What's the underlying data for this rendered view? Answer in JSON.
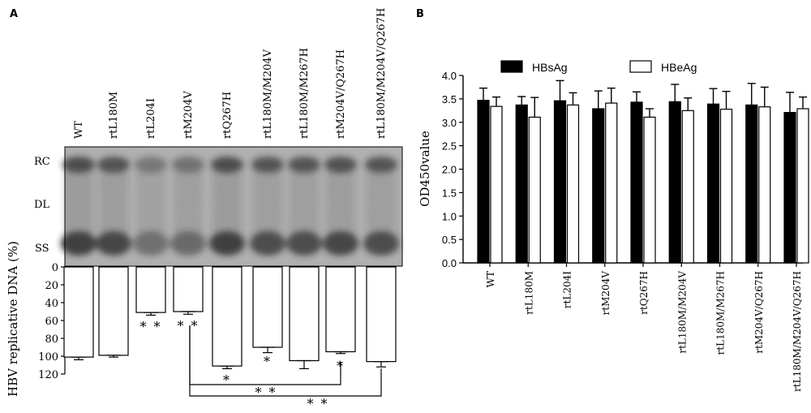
{
  "panel_a": {
    "letter": "A",
    "blot_bands": [
      "RC",
      "DL",
      "SS"
    ],
    "y_label": "HBV replicative DNA (%)",
    "y_ticks": [
      "0",
      "20",
      "40",
      "60",
      "80",
      "100",
      "120"
    ]
  },
  "panel_b": {
    "letter": "B",
    "y_label": "OD450value",
    "y_ticks": [
      "0.0",
      "0.5",
      "1.0",
      "1.5",
      "2.0",
      "2.5",
      "3.0",
      "3.5",
      "4.0"
    ]
  },
  "colors": {
    "hbsag": "#000000",
    "hbeag": "#ffffff",
    "blot_bg": "#bdbdbd",
    "blot_band": "#1e1e1e"
  },
  "chart_data": [
    {
      "type": "bar",
      "title": "",
      "xlabel": "",
      "ylabel": "HBV replicative DNA (%)",
      "ylim": [
        0,
        120
      ],
      "y_inverted": true,
      "grid": false,
      "categories": [
        "WT",
        "rtL180M",
        "rtL204I",
        "rtM204V",
        "rtQ267H",
        "rtL180M/M204V",
        "rtL180M/M267H",
        "rtM204V/Q267H",
        "rtL180M/M204V/Q267H"
      ],
      "values": [
        101,
        99,
        51,
        50,
        111,
        90,
        105,
        95,
        106
      ],
      "errors": [
        3,
        2,
        3,
        3,
        3,
        6,
        9,
        2,
        6
      ],
      "annotations": [
        {
          "category": "rtL204I",
          "text": "* *"
        },
        {
          "category": "rtM204V",
          "text": "* *"
        },
        {
          "category": "rtQ267H",
          "text": "*"
        },
        {
          "category": "rtL180M/M204V",
          "text": "*"
        },
        {
          "category": "rtM204V/Q267H",
          "text": "*"
        }
      ],
      "brackets": [
        {
          "from": "rtM204V",
          "to": "rtM204V/Q267H",
          "text": "* *"
        },
        {
          "from": "rtM204V",
          "to": "rtL180M/M204V/Q267H",
          "text": "* *"
        }
      ]
    },
    {
      "type": "bar",
      "title": "",
      "xlabel": "",
      "ylabel": "OD450value",
      "ylim": [
        0,
        4.0
      ],
      "grid": false,
      "legend": "top",
      "categories": [
        "WT",
        "rtL180M",
        "rtL204I",
        "rtM204V",
        "rtQ267H",
        "rtL180M/M204V",
        "rtL180M/M267H",
        "rtM204V/Q267H",
        "rtL180M/M204V/Q267H"
      ],
      "series": [
        {
          "name": "HBsAg",
          "values": [
            3.47,
            3.37,
            3.46,
            3.29,
            3.43,
            3.44,
            3.39,
            3.37,
            3.21
          ],
          "errors": [
            0.26,
            0.18,
            0.43,
            0.38,
            0.22,
            0.37,
            0.33,
            0.46,
            0.43
          ]
        },
        {
          "name": "HBeAg",
          "values": [
            3.34,
            3.11,
            3.37,
            3.41,
            3.11,
            3.25,
            3.28,
            3.33,
            3.29
          ],
          "errors": [
            0.2,
            0.42,
            0.26,
            0.32,
            0.18,
            0.27,
            0.38,
            0.42,
            0.25
          ]
        }
      ]
    }
  ]
}
